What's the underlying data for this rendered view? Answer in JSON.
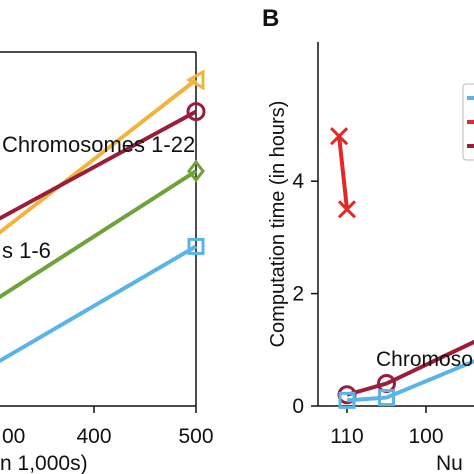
{
  "panel_a": {
    "annotations": {
      "chromosomes_1_22": "Chromosomes 1-22",
      "chromosomes_1_6": "s 1-6"
    },
    "xlabel_fragment": "n 1,000s)"
  },
  "panel_b": {
    "label": "B",
    "ylabel": "Computation time (in hours)",
    "xlabel_fragment": "Nu",
    "annotation": "Chromoso"
  },
  "colors": {
    "yellow": "#f0b43c",
    "maroon": "#9a1e3c",
    "green": "#6ea23a",
    "blue": "#5ab4e6",
    "red": "#e32828"
  },
  "chart_data": [
    {
      "type": "line",
      "title": "",
      "xlabel": "n 1,000s)",
      "ylabel": "",
      "xlim": [
        300,
        520
      ],
      "x_ticks": [
        "00",
        "400",
        "500"
      ],
      "series": [
        {
          "color_key": "yellow",
          "marker": "triangle-left",
          "x": [
            300,
            500
          ],
          "y": [
            2.1,
            4.1
          ]
        },
        {
          "color_key": "maroon",
          "marker": "circle",
          "x": [
            300,
            500
          ],
          "y": [
            2.3,
            3.7
          ]
        },
        {
          "color_key": "green",
          "marker": "diamond",
          "x": [
            300,
            500
          ],
          "y": [
            1.3,
            2.95
          ]
        },
        {
          "color_key": "blue",
          "marker": "square",
          "x": [
            300,
            500
          ],
          "y": [
            0.5,
            2.0
          ]
        }
      ]
    },
    {
      "type": "line",
      "title": "",
      "xlabel": "Nu",
      "ylabel": "Computation time (in hours)",
      "ylim": [
        0,
        5
      ],
      "y_ticks": [
        0,
        2,
        4
      ],
      "x_ticks": [
        "110",
        "100"
      ],
      "series": [
        {
          "color_key": "red",
          "marker": "x",
          "x": [
            110,
            111
          ],
          "y": [
            3.5,
            4.8
          ]
        },
        {
          "color_key": "maroon",
          "marker": "circle",
          "x": [
            110,
            105,
            93
          ],
          "y": [
            0.2,
            0.4,
            1.2
          ]
        },
        {
          "color_key": "blue",
          "marker": "square",
          "x": [
            110,
            105,
            93
          ],
          "y": [
            0.1,
            0.15,
            0.85
          ]
        }
      ]
    }
  ]
}
